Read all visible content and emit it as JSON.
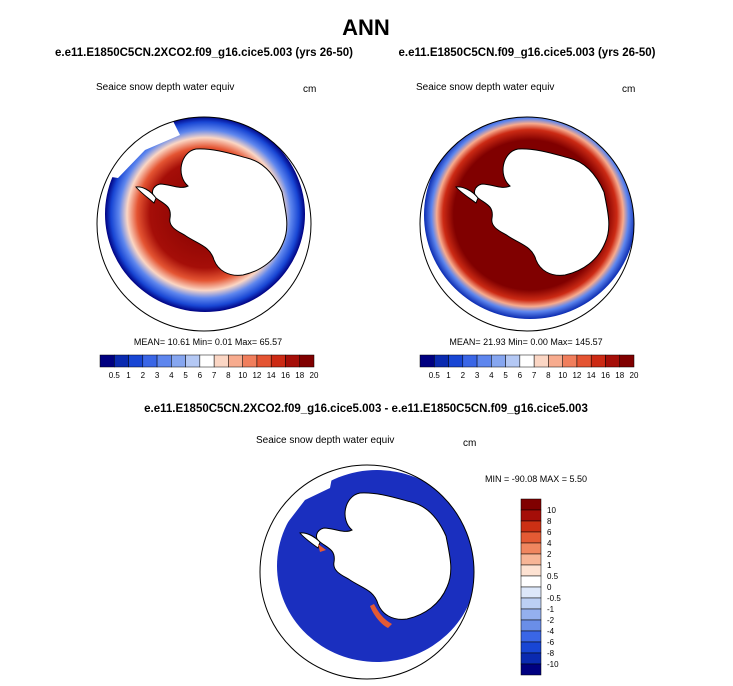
{
  "chart_data": {
    "type": "heatmap",
    "title": "ANN",
    "colors": {
      "ice": "#cc0000",
      "land": "#ffffff",
      "coast": "#000000",
      "diffOcean": "#1a2fbf",
      "mainScale": [
        "#000080",
        "#0a2ab0",
        "#1846d4",
        "#3a66e6",
        "#5e86ee",
        "#86a6f0",
        "#b4c8f4",
        "#ffffff",
        "#fbd6c4",
        "#f7ab8e",
        "#f07e5c",
        "#e45432",
        "#cc2a14",
        "#a50e08",
        "#800000"
      ],
      "diffScale": [
        "#000080",
        "#0a2ab0",
        "#1846d4",
        "#3a66e6",
        "#6a8ee8",
        "#94b0ee",
        "#bcd0f4",
        "#dde8fa",
        "#ffffff",
        "#fde2d2",
        "#f7b596",
        "#f0865f",
        "#e45a34",
        "#cc3014",
        "#a50e08",
        "#800000"
      ]
    },
    "panels": [
      {
        "title": "e.e11.E1850C5CN.2XCO2.f09_g16.cice5.003 (yrs 26-50)",
        "variable": "Seaice snow depth water equiv",
        "units": "cm",
        "stats_line": "MEAN=  10.61  Min=   0.01  Max=   65.57",
        "colorbar_labels": [
          "0.5",
          "1",
          "2",
          "3",
          "4",
          "5",
          "6",
          "7",
          "8",
          "10",
          "12",
          "14",
          "16",
          "18",
          "20"
        ]
      },
      {
        "title": "e.e11.E1850C5CN.f09_g16.cice5.003 (yrs 26-50)",
        "variable": "Seaice snow depth water equiv",
        "units": "cm",
        "stats_line": "MEAN=  21.93  Min=   0.00  Max=  145.57",
        "colorbar_labels": [
          "0.5",
          "1",
          "2",
          "3",
          "4",
          "5",
          "6",
          "7",
          "8",
          "10",
          "12",
          "14",
          "16",
          "18",
          "20"
        ]
      },
      {
        "title": "e.e11.E1850C5CN.2XCO2.f09_g16.cice5.003 - e.e11.E1850C5CN.f09_g16.cice5.003",
        "variable": "Seaice snow depth water equiv",
        "units": "cm",
        "stats_line": "MIN = -90.08  MAX =   5.50",
        "colorbar_labels": [
          "10",
          "8",
          "6",
          "4",
          "2",
          "1",
          "0.5",
          "0",
          "-0.5",
          "-1",
          "-2",
          "-4",
          "-6",
          "-8",
          "-10"
        ]
      }
    ]
  }
}
